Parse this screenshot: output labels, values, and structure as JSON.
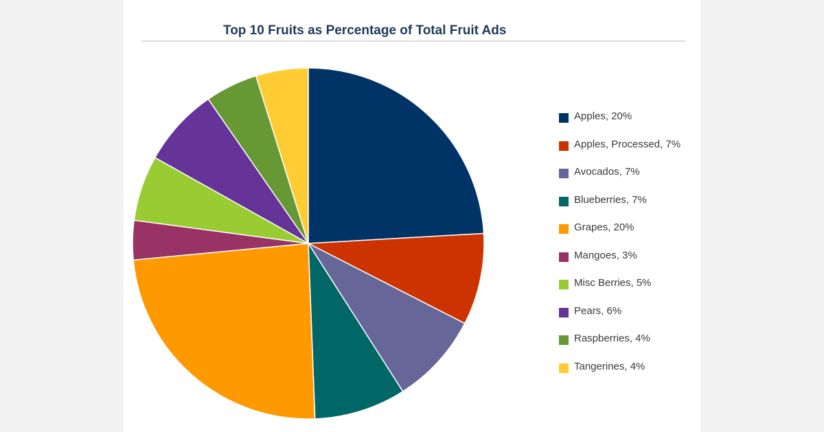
{
  "chart_data": {
    "type": "pie",
    "title": "Top 10 Fruits as Percentage of Total Fruit Ads",
    "legend_position": "right",
    "slices": [
      {
        "label": "Apples, 20%",
        "name": "Apples",
        "value": 20,
        "color": "#003366"
      },
      {
        "label": "Apples, Processed, 7%",
        "name": "Apples, Processed",
        "value": 7,
        "color": "#cc3300"
      },
      {
        "label": "Avocados, 7%",
        "name": "Avocados",
        "value": 7,
        "color": "#666699"
      },
      {
        "label": "Blueberries, 7%",
        "name": "Blueberries",
        "value": 7,
        "color": "#006666"
      },
      {
        "label": "Grapes, 20%",
        "name": "Grapes",
        "value": 20,
        "color": "#ff9900"
      },
      {
        "label": "Mangoes, 3%",
        "name": "Mangoes",
        "value": 3,
        "color": "#993366"
      },
      {
        "label": "Misc Berries, 5%",
        "name": "Misc Berries",
        "value": 5,
        "color": "#99cc33"
      },
      {
        "label": "Pears, 6%",
        "name": "Pears",
        "value": 6,
        "color": "#663399"
      },
      {
        "label": "Raspberries, 4%",
        "name": "Raspberries",
        "value": 4,
        "color": "#669933"
      },
      {
        "label": "Tangerines, 4%",
        "name": "Tangerines",
        "value": 4,
        "color": "#ffcc33"
      }
    ]
  }
}
